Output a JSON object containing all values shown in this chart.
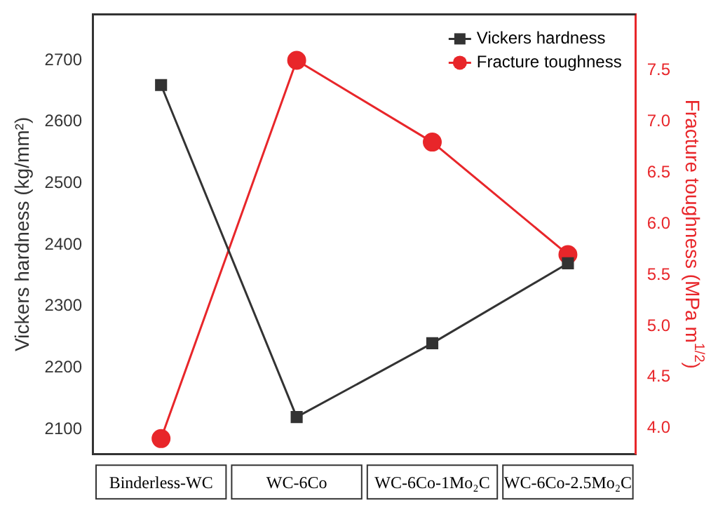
{
  "chart_data": {
    "type": "line",
    "categories": [
      "Binderless-WC",
      "WC-6Co",
      "WC-6Co-1Mo₂C",
      "WC-6Co-2.5Mo₂C"
    ],
    "ylabel": "Vickers hardness (kg/mm²)",
    "y2label": "Fracture toughness (MPa m$^{1/2}$)",
    "ylim": [
      2060,
      2775
    ],
    "yticks": [
      2100,
      2200,
      2300,
      2400,
      2500,
      2600,
      2700
    ],
    "y2lim": [
      3.75,
      8.05
    ],
    "y2ticks": [
      {
        "value": 4,
        "label": "4.0"
      },
      {
        "value": 4.5,
        "label": "4.5"
      },
      {
        "value": 5,
        "label": "5.0"
      },
      {
        "value": 5.5,
        "label": "5.5"
      },
      {
        "value": 6,
        "label": "6.0"
      },
      {
        "value": 6.5,
        "label": "6.5"
      },
      {
        "value": 7,
        "label": "7.0"
      },
      {
        "value": 7.5,
        "label": "7.5"
      }
    ],
    "legend": "top right",
    "grid": false,
    "line_style": "solid",
    "series": [
      {
        "name": "Vickers hardness",
        "color": "#333333",
        "marker": "square",
        "values": [
          2660,
          2120,
          2240,
          2370
        ]
      },
      {
        "name": "Fracture toughness",
        "color": "#e8262a",
        "marker": "circle",
        "axis": "y2",
        "values": [
          3.9,
          7.6,
          6.8,
          5.7
        ]
      }
    ]
  }
}
